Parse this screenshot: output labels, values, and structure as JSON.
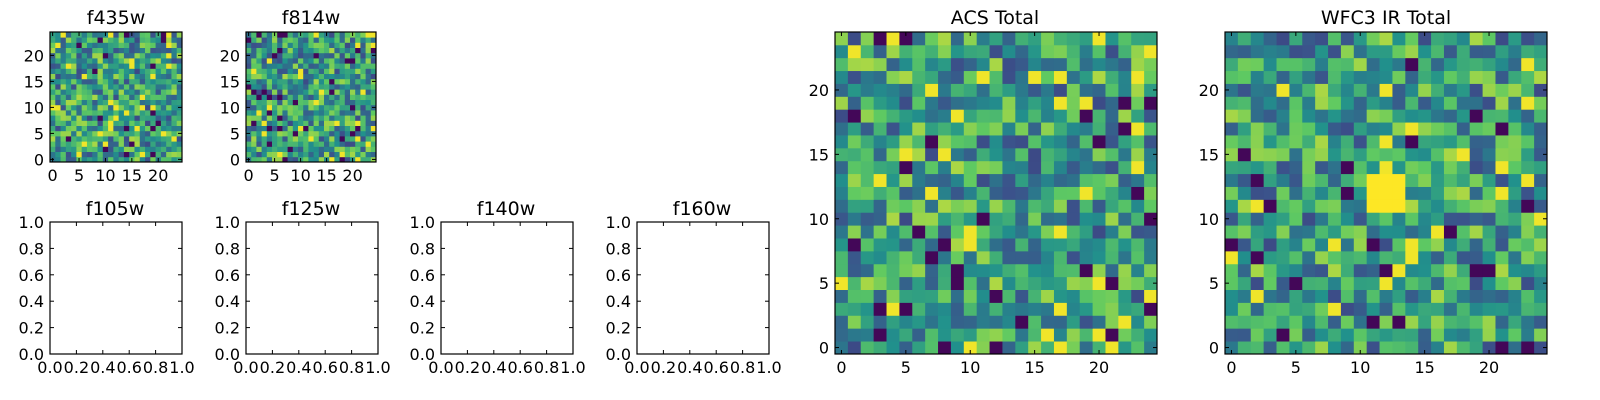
{
  "chart_data": [
    {
      "type": "heatmap",
      "title": "f435w",
      "rows": 25,
      "cols": 25,
      "seed": 11,
      "colormap": "viridis",
      "xlim": [
        -0.5,
        24.5
      ],
      "ylim": [
        -0.5,
        24.5
      ],
      "xticks": [
        0,
        5,
        10,
        15,
        20
      ],
      "yticks": [
        0,
        5,
        10,
        15,
        20
      ],
      "xtick_labels": [
        "0",
        "5",
        "10",
        "15",
        "20"
      ],
      "ytick_labels": [
        "0",
        "5",
        "10",
        "15",
        "20"
      ]
    },
    {
      "type": "heatmap",
      "title": "f814w",
      "rows": 25,
      "cols": 25,
      "seed": 29,
      "colormap": "viridis",
      "xlim": [
        -0.5,
        24.5
      ],
      "ylim": [
        -0.5,
        24.5
      ],
      "xticks": [
        0,
        5,
        10,
        15,
        20
      ],
      "yticks": [
        0,
        5,
        10,
        15,
        20
      ],
      "xtick_labels": [
        "0",
        "5",
        "10",
        "15",
        "20"
      ],
      "ytick_labels": [
        "0",
        "5",
        "10",
        "15",
        "20"
      ]
    },
    {
      "type": "scatter",
      "title": "f105w",
      "xlim": [
        0,
        1
      ],
      "ylim": [
        0,
        1
      ],
      "points": [],
      "xtick_labels": [
        "0.0",
        "0.2",
        "0.4",
        "0.6",
        "0.8",
        "1.0"
      ],
      "ytick_labels": [
        "0.0",
        "0.2",
        "0.4",
        "0.6",
        "0.8",
        "1.0"
      ]
    },
    {
      "type": "scatter",
      "title": "f125w",
      "xlim": [
        0,
        1
      ],
      "ylim": [
        0,
        1
      ],
      "points": [],
      "xtick_labels": [
        "0.0",
        "0.2",
        "0.4",
        "0.6",
        "0.8",
        "1.0"
      ],
      "ytick_labels": [
        "0.0",
        "0.2",
        "0.4",
        "0.6",
        "0.8",
        "1.0"
      ]
    },
    {
      "type": "scatter",
      "title": "f140w",
      "xlim": [
        0,
        1
      ],
      "ylim": [
        0,
        1
      ],
      "points": [],
      "xtick_labels": [
        "0.0",
        "0.2",
        "0.4",
        "0.6",
        "0.8",
        "1.0"
      ],
      "ytick_labels": [
        "0.0",
        "0.2",
        "0.4",
        "0.6",
        "0.8",
        "1.0"
      ]
    },
    {
      "type": "scatter",
      "title": "f160w",
      "xlim": [
        0,
        1
      ],
      "ylim": [
        0,
        1
      ],
      "points": [],
      "xtick_labels": [
        "0.0",
        "0.2",
        "0.4",
        "0.6",
        "0.8",
        "1.0"
      ],
      "ytick_labels": [
        "0.0",
        "0.2",
        "0.4",
        "0.6",
        "0.8",
        "1.0"
      ]
    },
    {
      "type": "heatmap",
      "title": "ACS Total",
      "rows": 25,
      "cols": 25,
      "seed": 47,
      "colormap": "viridis",
      "xlim": [
        -0.5,
        24.5
      ],
      "ylim": [
        -0.5,
        24.5
      ],
      "xticks": [
        0,
        5,
        10,
        15,
        20
      ],
      "yticks": [
        0,
        5,
        10,
        15,
        20
      ],
      "xtick_labels": [
        "0",
        "5",
        "10",
        "15",
        "20"
      ],
      "ytick_labels": [
        "0",
        "5",
        "10",
        "15",
        "20"
      ]
    },
    {
      "type": "heatmap",
      "title": "WFC3 IR Total",
      "rows": 25,
      "cols": 25,
      "seed": 83,
      "colormap": "viridis",
      "xlim": [
        -0.5,
        24.5
      ],
      "ylim": [
        -0.5,
        24.5
      ],
      "xticks": [
        0,
        5,
        10,
        15,
        20
      ],
      "yticks": [
        0,
        5,
        10,
        15,
        20
      ],
      "xtick_labels": [
        "0",
        "5",
        "10",
        "15",
        "20"
      ],
      "ytick_labels": [
        "0",
        "5",
        "10",
        "15",
        "20"
      ],
      "bright_block": {
        "x": [
          11,
          13
        ],
        "y": [
          11,
          13
        ]
      }
    }
  ]
}
